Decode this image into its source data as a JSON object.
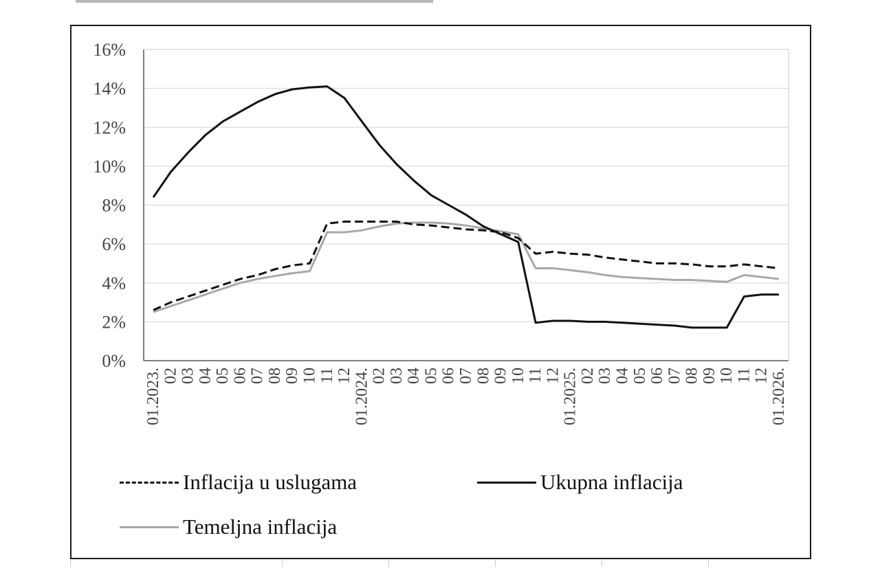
{
  "chart_data": {
    "type": "line",
    "title": "",
    "xlabel": "",
    "ylabel": "",
    "ylim": [
      0,
      16
    ],
    "y_ticks": [
      "0%",
      "2%",
      "4%",
      "6%",
      "8%",
      "10%",
      "12%",
      "14%",
      "16%"
    ],
    "x_ticks": [
      "01.2023.",
      "02",
      "03",
      "04",
      "05",
      "06",
      "07",
      "08",
      "09",
      "10",
      "11",
      "12",
      "01.2024.",
      "02",
      "03",
      "04",
      "05",
      "06",
      "07",
      "08",
      "09",
      "10",
      "11",
      "12",
      "01.2025.",
      "02",
      "03",
      "04",
      "05",
      "06",
      "07",
      "08",
      "09",
      "10",
      "11",
      "12",
      "01.2026."
    ],
    "grid": "horizontal",
    "legend_position": "bottom",
    "series": [
      {
        "name": "Inflacija u uslugama",
        "color": "#111111",
        "style": "dashed",
        "values": [
          2.6,
          3.0,
          3.3,
          3.6,
          3.9,
          4.2,
          4.4,
          4.7,
          4.9,
          5.0,
          7.05,
          7.15,
          7.15,
          7.15,
          7.15,
          7.0,
          6.95,
          6.85,
          6.75,
          6.7,
          6.6,
          6.3,
          5.5,
          5.6,
          5.5,
          5.45,
          5.3,
          5.2,
          5.1,
          5.0,
          5.0,
          4.95,
          4.85,
          4.85,
          4.95,
          4.85,
          4.75
        ]
      },
      {
        "name": "Ukupna inflacija",
        "color": "#111111",
        "style": "solid",
        "values": [
          8.4,
          9.7,
          10.7,
          11.6,
          12.3,
          12.8,
          13.3,
          13.7,
          13.95,
          14.05,
          14.1,
          13.5,
          12.3,
          11.1,
          10.1,
          9.25,
          8.5,
          8.0,
          7.5,
          6.9,
          6.5,
          6.1,
          1.95,
          2.05,
          2.05,
          2.0,
          2.0,
          1.95,
          1.9,
          1.85,
          1.8,
          1.7,
          1.7,
          1.7,
          3.3,
          3.4,
          3.4
        ]
      },
      {
        "name": "Temeljna inflacija",
        "color": "#a8a8a8",
        "style": "solid",
        "values": [
          2.5,
          2.8,
          3.1,
          3.4,
          3.7,
          4.0,
          4.2,
          4.35,
          4.5,
          4.6,
          6.6,
          6.6,
          6.7,
          6.9,
          7.05,
          7.1,
          7.1,
          7.05,
          6.95,
          6.8,
          6.65,
          6.5,
          4.75,
          4.75,
          4.65,
          4.55,
          4.4,
          4.3,
          4.25,
          4.2,
          4.15,
          4.15,
          4.1,
          4.05,
          4.4,
          4.3,
          4.2
        ]
      }
    ]
  }
}
